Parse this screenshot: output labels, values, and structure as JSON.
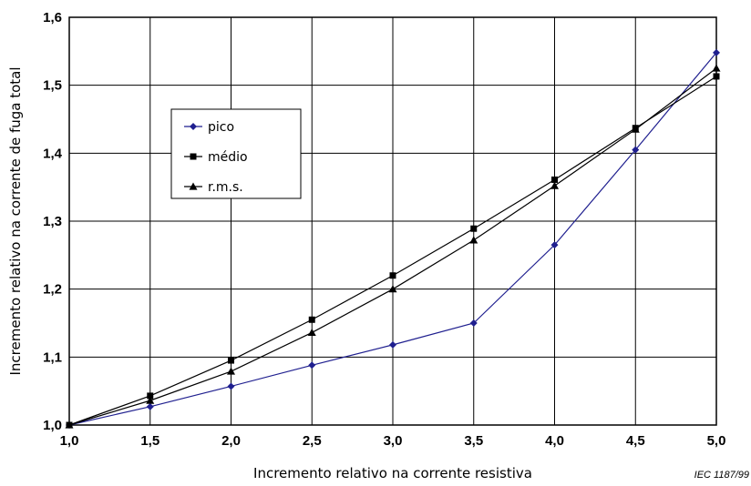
{
  "chart_data": {
    "type": "line",
    "xlabel": "Incremento relativo na corrente resistiva",
    "ylabel": "Incremento relativo na corrente de fuga total",
    "xlim": [
      1.0,
      5.0
    ],
    "ylim": [
      1.0,
      1.6
    ],
    "x_ticks": [
      "1,0",
      "1,5",
      "2,0",
      "2,5",
      "3,0",
      "3,5",
      "4,0",
      "4,5",
      "5,0"
    ],
    "y_ticks": [
      "1,0",
      "1,1",
      "1,2",
      "1,3",
      "1,4",
      "1,5",
      "1,6"
    ],
    "x": [
      1.0,
      1.5,
      2.0,
      2.5,
      3.0,
      3.5,
      4.0,
      4.5,
      5.0
    ],
    "grid": true,
    "legend_position": "upper-left",
    "series": [
      {
        "name": "pico",
        "marker": "diamond",
        "color": "#1f1f8f",
        "values": [
          1.0,
          1.027,
          1.057,
          1.088,
          1.118,
          1.15,
          1.265,
          1.405,
          1.548
        ]
      },
      {
        "name": "médio",
        "marker": "square",
        "color": "#000000",
        "values": [
          1.0,
          1.043,
          1.095,
          1.155,
          1.22,
          1.289,
          1.361,
          1.437,
          1.513
        ]
      },
      {
        "name": "r.m.s.",
        "marker": "triangle",
        "color": "#000000",
        "values": [
          1.0,
          1.036,
          1.079,
          1.136,
          1.2,
          1.272,
          1.352,
          1.435,
          1.525
        ]
      }
    ]
  },
  "source_note": "IEC   1187/99"
}
